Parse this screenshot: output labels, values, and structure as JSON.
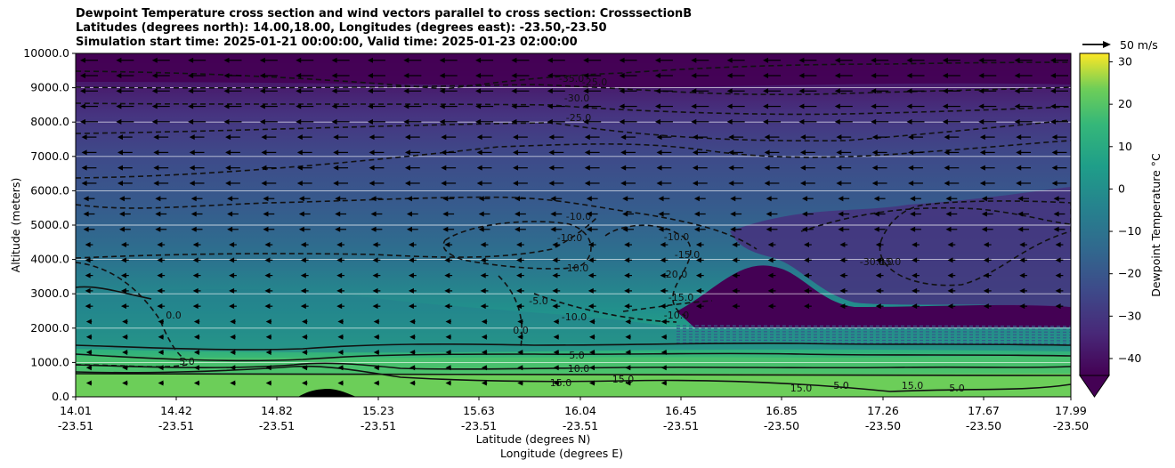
{
  "title_lines": [
    "Dewpoint Temperature cross section and wind vectors parallel to cross section: CrosssectionB",
    "Latitudes (degrees north): 14.00,18.00, Longitudes (degrees east): -23.50,-23.50",
    "Simulation start time: 2025-01-21 00:00:00, Valid time: 2025-01-23 02:00:00"
  ],
  "chart_data": {
    "type": "heatmap",
    "title": "Dewpoint Temperature cross section and wind vectors parallel to cross section: CrosssectionB",
    "ylabel": "Altitude (meters)",
    "xlabel_lines": [
      "Latitude (degrees N)",
      "Longitude (degrees E)"
    ],
    "ylim": [
      0,
      10000
    ],
    "y_ticks": [
      "0.0",
      "1000.0",
      "2000.0",
      "3000.0",
      "4000.0",
      "5000.0",
      "6000.0",
      "7000.0",
      "8000.0",
      "9000.0",
      "10000.0"
    ],
    "x_ticks": [
      {
        "lat": "14.01",
        "lon": "-23.51"
      },
      {
        "lat": "14.42",
        "lon": "-23.51"
      },
      {
        "lat": "14.82",
        "lon": "-23.51"
      },
      {
        "lat": "15.23",
        "lon": "-23.51"
      },
      {
        "lat": "15.63",
        "lon": "-23.51"
      },
      {
        "lat": "16.04",
        "lon": "-23.51"
      },
      {
        "lat": "16.45",
        "lon": "-23.51"
      },
      {
        "lat": "16.85",
        "lon": "-23.50"
      },
      {
        "lat": "17.26",
        "lon": "-23.50"
      },
      {
        "lat": "17.67",
        "lon": "-23.50"
      },
      {
        "lat": "17.99",
        "lon": "-23.50"
      }
    ],
    "grid": "horizontal",
    "colorbar": {
      "label": "Dewpoint Temperature °C",
      "range": [
        -44,
        32
      ],
      "ticks": [
        "30",
        "20",
        "10",
        "0",
        "−10",
        "−20",
        "−30",
        "−40"
      ],
      "colormap": "viridis",
      "extend": "min"
    },
    "quiver_key": "50 m/s",
    "contour_labels": [
      "-35.0",
      "-25.0",
      "-30.0",
      "-25.0",
      "-10.0",
      "-10.0",
      "-10.0",
      "-15.0",
      "-10.0",
      "-20.0",
      "-15.0",
      "-10.0",
      "-5.0",
      "0.0",
      "0.0",
      "0.0",
      "-10.0",
      "-30.0",
      "5.0",
      "10.0",
      "15.0",
      "15.0",
      "15.0",
      "5.0",
      "15.0",
      "5.0",
      "5.0",
      "15.0"
    ],
    "levels": [
      {
        "alt": 0,
        "dewpoint": 18
      },
      {
        "alt": 500,
        "dewpoint": 15
      },
      {
        "alt": 1000,
        "dewpoint": 8
      },
      {
        "alt": 1500,
        "dewpoint": 0
      },
      {
        "alt": 2500,
        "dewpoint": -5
      },
      {
        "alt": 4000,
        "dewpoint": -10
      },
      {
        "alt": 5000,
        "dewpoint": -15
      },
      {
        "alt": 6000,
        "dewpoint": -20
      },
      {
        "alt": 7000,
        "dewpoint": -25
      },
      {
        "alt": 8000,
        "dewpoint": -30
      },
      {
        "alt": 9000,
        "dewpoint": -35
      },
      {
        "alt": 10000,
        "dewpoint": -40
      }
    ],
    "colors": {
      "very_dry": "#440154",
      "dry": "#46317e",
      "mid": "#365c8d",
      "moist": "#277f8e",
      "wet": "#1fa187",
      "very_wet": "#4ac16d",
      "surface": "#6cce59"
    }
  }
}
